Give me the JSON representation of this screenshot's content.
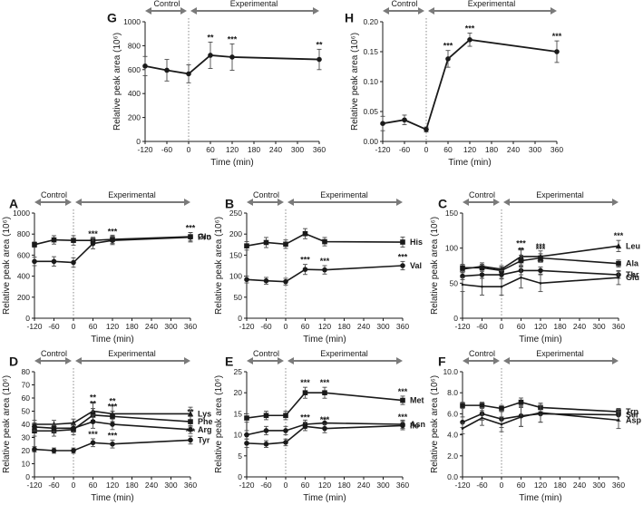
{
  "chart_data": [
    {
      "id": "G",
      "type": "line",
      "title": "G",
      "xlabel": "Time (min)",
      "ylabel": "Relative peak area (10⁶)",
      "xlim": [
        -120,
        360
      ],
      "ylim": [
        0,
        1000
      ],
      "xticks": [
        "-120",
        "-60",
        "0",
        "60",
        "120",
        "180",
        "240",
        "300",
        "360"
      ],
      "yticks": [
        "0",
        "200",
        "400",
        "600",
        "800",
        "1000"
      ],
      "phases": {
        "control": "Control",
        "experimental": "Experimental"
      },
      "series": [
        {
          "name": "",
          "x": [
            -120,
            -60,
            0,
            60,
            120,
            360
          ],
          "values": [
            630,
            595,
            565,
            720,
            705,
            685
          ],
          "err": [
            80,
            90,
            75,
            110,
            110,
            85
          ],
          "marker": "circle",
          "sig": [
            "",
            "",
            "",
            "**",
            "***",
            "**"
          ]
        }
      ]
    },
    {
      "id": "H",
      "type": "line",
      "title": "H",
      "xlabel": "Time (min)",
      "ylabel": "Relative peak area (10⁶)",
      "xlim": [
        -120,
        360
      ],
      "ylim": [
        0,
        0.2
      ],
      "xticks": [
        "-120",
        "-60",
        "0",
        "60",
        "120",
        "180",
        "240",
        "300",
        "360"
      ],
      "yticks": [
        "0.00",
        "0.05",
        "0.10",
        "0.15",
        "0.20"
      ],
      "phases": {
        "control": "Control",
        "experimental": "Experimental"
      },
      "series": [
        {
          "name": "",
          "x": [
            -120,
            -60,
            0,
            60,
            120,
            360
          ],
          "values": [
            0.03,
            0.036,
            0.02,
            0.138,
            0.17,
            0.15
          ],
          "err": [
            0.012,
            0.008,
            0.004,
            0.014,
            0.011,
            0.018
          ],
          "marker": "circle",
          "sig": [
            "",
            "",
            "",
            "***",
            "***",
            "***"
          ]
        }
      ]
    },
    {
      "id": "A",
      "type": "line",
      "title": "A",
      "xlabel": "Time (min)",
      "ylabel": "Relative peak area (10⁶)",
      "xlim": [
        -120,
        360
      ],
      "ylim": [
        0,
        1000
      ],
      "xticks": [
        "-120",
        "-60",
        "0",
        "60",
        "120",
        "180",
        "240",
        "300",
        "360"
      ],
      "yticks": [
        "0",
        "200",
        "400",
        "600",
        "800",
        "1000"
      ],
      "phases": {
        "control": "Control",
        "experimental": "Experimental"
      },
      "series": [
        {
          "name": "Gln",
          "x": [
            -120,
            -60,
            0,
            60,
            120,
            360
          ],
          "values": [
            700,
            745,
            740,
            740,
            750,
            775
          ],
          "err": [
            25,
            40,
            45,
            30,
            40,
            40
          ],
          "marker": "square",
          "sig": [
            "",
            "",
            "",
            "",
            "",
            ""
          ]
        },
        {
          "name": "Pro",
          "x": [
            -120,
            -60,
            0,
            60,
            120,
            360
          ],
          "values": [
            540,
            540,
            530,
            710,
            740,
            770
          ],
          "err": [
            40,
            45,
            45,
            50,
            40,
            45
          ],
          "marker": "circle",
          "sig": [
            "",
            "",
            "",
            "***",
            "***",
            "***"
          ]
        }
      ]
    },
    {
      "id": "B",
      "type": "line",
      "title": "B",
      "xlabel": "Time (min)",
      "ylabel": "Relative peak area (10⁶)",
      "xlim": [
        -120,
        360
      ],
      "ylim": [
        0,
        250
      ],
      "xticks": [
        "-120",
        "-60",
        "0",
        "60",
        "120",
        "180",
        "240",
        "300",
        "360"
      ],
      "yticks": [
        "0",
        "50",
        "100",
        "150",
        "200",
        "250"
      ],
      "phases": {
        "control": "Control",
        "experimental": "Experimental"
      },
      "series": [
        {
          "name": "His",
          "x": [
            -120,
            -60,
            0,
            60,
            120,
            360
          ],
          "values": [
            172,
            180,
            176,
            201,
            182,
            181
          ],
          "err": [
            10,
            12,
            10,
            12,
            10,
            12
          ],
          "marker": "square",
          "sig": [
            "",
            "",
            "",
            "",
            "",
            ""
          ]
        },
        {
          "name": "Val",
          "x": [
            -120,
            -60,
            0,
            60,
            120,
            360
          ],
          "values": [
            92,
            89,
            87,
            116,
            115,
            125
          ],
          "err": [
            8,
            8,
            8,
            12,
            10,
            10
          ],
          "marker": "circle",
          "sig": [
            "",
            "",
            "",
            "***",
            "***",
            "***"
          ]
        }
      ]
    },
    {
      "id": "C",
      "type": "line",
      "title": "C",
      "xlabel": "Time (min)",
      "ylabel": "Relative peak area (10⁶)",
      "xlim": [
        -120,
        360
      ],
      "ylim": [
        0,
        150
      ],
      "xticks": [
        "-120",
        "-60",
        "0",
        "60",
        "120",
        "180",
        "240",
        "300",
        "360"
      ],
      "yticks": [
        "0",
        "50",
        "100",
        "150"
      ],
      "phases": {
        "control": "Control",
        "experimental": "Experimental"
      },
      "series": [
        {
          "name": "Leu",
          "x": [
            -120,
            -60,
            0,
            60,
            120,
            360
          ],
          "values": [
            70,
            74,
            70,
            88,
            88,
            103
          ],
          "err": [
            5,
            5,
            5,
            12,
            8,
            8
          ],
          "marker": "triangle",
          "sig": [
            "",
            "",
            "",
            "***",
            "***",
            "***"
          ]
        },
        {
          "name": "Ala",
          "x": [
            -120,
            -60,
            0,
            60,
            120,
            360
          ],
          "values": [
            72,
            72,
            68,
            82,
            86,
            78
          ],
          "err": [
            5,
            5,
            5,
            8,
            6,
            5
          ],
          "marker": "square",
          "sig": [
            "",
            "",
            "",
            "**",
            "***",
            ""
          ]
        },
        {
          "name": "Thr",
          "x": [
            -120,
            -60,
            0,
            60,
            120,
            360
          ],
          "values": [
            60,
            62,
            62,
            68,
            68,
            62
          ],
          "err": [
            5,
            5,
            6,
            6,
            5,
            5
          ],
          "marker": "circle",
          "sig": [
            "",
            "",
            "",
            "**",
            "**",
            ""
          ]
        },
        {
          "name": "Glu",
          "x": [
            -120,
            -60,
            0,
            60,
            120,
            360
          ],
          "values": [
            48,
            45,
            45,
            58,
            50,
            58
          ],
          "err": [
            10,
            12,
            12,
            15,
            12,
            10
          ],
          "marker": "none",
          "sig": [
            "",
            "",
            "",
            "",
            "",
            ""
          ]
        }
      ]
    },
    {
      "id": "D",
      "type": "line",
      "title": "D",
      "xlabel": "Time (min)",
      "ylabel": "Relative peak area (10⁶)",
      "xlim": [
        -120,
        360
      ],
      "ylim": [
        0,
        80
      ],
      "xticks": [
        "-120",
        "-60",
        "0",
        "60",
        "120",
        "180",
        "240",
        "300",
        "360"
      ],
      "yticks": [
        "0",
        "10",
        "20",
        "30",
        "40",
        "50",
        "60",
        "70",
        "80"
      ],
      "phases": {
        "control": "Control",
        "experimental": "Experimental"
      },
      "series": [
        {
          "name": "Lys",
          "x": [
            -120,
            -60,
            0,
            60,
            120,
            360
          ],
          "values": [
            40,
            40,
            41,
            50,
            48,
            48
          ],
          "err": [
            3,
            3,
            3,
            7,
            6,
            5
          ],
          "marker": "triangle",
          "sig": [
            "",
            "",
            "",
            "**",
            "**",
            ""
          ]
        },
        {
          "name": "Phe",
          "x": [
            -120,
            -60,
            0,
            60,
            120,
            360
          ],
          "values": [
            35,
            35,
            36,
            47,
            46,
            42
          ],
          "err": [
            4,
            4,
            4,
            5,
            4,
            4
          ],
          "marker": "square",
          "sig": [
            "",
            "",
            "",
            "**",
            "***",
            "**"
          ]
        },
        {
          "name": "Arg",
          "x": [
            -120,
            -60,
            0,
            60,
            120,
            360
          ],
          "values": [
            38,
            37,
            37,
            42,
            40,
            36
          ],
          "err": [
            3,
            3,
            3,
            5,
            4,
            3
          ],
          "marker": "circle",
          "sig": [
            "",
            "",
            "",
            "",
            "",
            ""
          ]
        },
        {
          "name": "Tyr",
          "x": [
            -120,
            -60,
            0,
            60,
            120,
            360
          ],
          "values": [
            21,
            20,
            20,
            26,
            25,
            28
          ],
          "err": [
            2,
            2,
            2,
            3,
            3,
            3
          ],
          "marker": "circle",
          "sig": [
            "",
            "",
            "",
            "***",
            "***",
            "***"
          ]
        }
      ]
    },
    {
      "id": "E",
      "type": "line",
      "title": "E",
      "xlabel": "Time (min)",
      "ylabel": "Relative peak area (10⁶)",
      "xlim": [
        -120,
        360
      ],
      "ylim": [
        0,
        25
      ],
      "xticks": [
        "-120",
        "-60",
        "0",
        "60",
        "120",
        "180",
        "240",
        "300",
        "360"
      ],
      "yticks": [
        "0",
        "5",
        "10",
        "15",
        "20",
        "25"
      ],
      "phases": {
        "control": "Control",
        "experimental": "Experimental"
      },
      "series": [
        {
          "name": "Met",
          "x": [
            -120,
            -60,
            0,
            60,
            120,
            360
          ],
          "values": [
            14,
            14.6,
            14.6,
            20,
            20,
            18.2
          ],
          "err": [
            1,
            1,
            1,
            1.3,
            1.3,
            1
          ],
          "marker": "square",
          "sig": [
            "",
            "",
            "",
            "***",
            "***",
            "***"
          ]
        },
        {
          "name": "Asn",
          "x": [
            -120,
            -60,
            0,
            60,
            120,
            360
          ],
          "values": [
            10,
            11,
            11,
            12.5,
            12.8,
            12.5
          ],
          "err": [
            1,
            1,
            1,
            1,
            1,
            1
          ],
          "marker": "circle",
          "sig": [
            "",
            "",
            "",
            "",
            "",
            ""
          ]
        },
        {
          "name": "Ile",
          "x": [
            -120,
            -60,
            0,
            60,
            120,
            360
          ],
          "values": [
            8,
            7.8,
            8.2,
            12,
            11.5,
            12.2
          ],
          "err": [
            1,
            0.8,
            0.8,
            1,
            1,
            1
          ],
          "marker": "circle",
          "sig": [
            "",
            "",
            "",
            "***",
            "***",
            "***"
          ]
        }
      ]
    },
    {
      "id": "F",
      "type": "line",
      "title": "F",
      "xlabel": "Time (min)",
      "ylabel": "Relative peak area (10⁶)",
      "xlim": [
        -120,
        360
      ],
      "ylim": [
        0,
        10
      ],
      "xticks": [
        "-120",
        "-60",
        "0",
        "60",
        "120",
        "180",
        "240",
        "300",
        "360"
      ],
      "yticks": [
        "0.0",
        "2.0",
        "4.0",
        "6.0",
        "8.0",
        "10.0"
      ],
      "phases": {
        "control": "Control",
        "experimental": "Experimental"
      },
      "series": [
        {
          "name": "Trp",
          "x": [
            -120,
            -60,
            0,
            60,
            120,
            360
          ],
          "values": [
            6.8,
            6.8,
            6.5,
            7.1,
            6.6,
            6.2
          ],
          "err": [
            0.3,
            0.3,
            0.3,
            0.4,
            0.4,
            0.3
          ],
          "marker": "square",
          "sig": [
            "",
            "",
            "",
            "",
            "",
            ""
          ]
        },
        {
          "name": "Ser",
          "x": [
            -120,
            -60,
            0,
            60,
            120,
            360
          ],
          "values": [
            5.2,
            6.0,
            5.5,
            5.8,
            6.0,
            5.9
          ],
          "err": [
            0.5,
            0.6,
            0.8,
            1,
            0.8,
            0.6
          ],
          "marker": "circle",
          "sig": [
            "",
            "",
            "",
            "",
            "",
            ""
          ]
        },
        {
          "name": "Asp",
          "x": [
            -120,
            -60,
            0,
            60,
            120,
            360
          ],
          "values": [
            4.6,
            5.6,
            5.0,
            5.7,
            6.1,
            5.4
          ],
          "err": [
            0.5,
            0.7,
            0.7,
            0.9,
            0.9,
            0.8
          ],
          "marker": "none",
          "sig": [
            "",
            "",
            "",
            "",
            "",
            ""
          ]
        }
      ]
    }
  ]
}
